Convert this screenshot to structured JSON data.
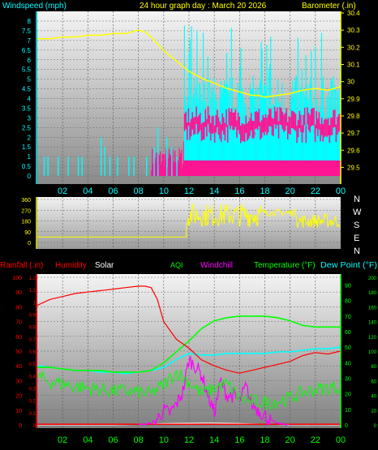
{
  "header": {
    "left": "Windspeed (mph)",
    "center": "24 hour graph day : March 20 2026",
    "right": "Barometer (.in)"
  },
  "x_ticks": [
    "02",
    "04",
    "06",
    "08",
    "10",
    "12",
    "14",
    "16",
    "18",
    "20",
    "22",
    "00"
  ],
  "compass": [
    "N",
    "W",
    "S",
    "E",
    "N"
  ],
  "bottom_header": {
    "rain": "Rainfall (.in)",
    "humidity": "Humidity",
    "solar": "Solar",
    "aqi": "AQI",
    "windchill": "Windchill",
    "temperature": "Temperature (°F)",
    "dewpoint": "Dew Point (°F)"
  },
  "colors": {
    "background": "#000000",
    "wind": "#00ffff",
    "gust": "#ff1493",
    "barometer": "#ffff00",
    "direction": "#ffff00",
    "rain": "#ff0000",
    "humidity": "#ff0000",
    "solar": "#ffffff",
    "aqi": "#00ff00",
    "windchill": "#ff00ff",
    "temperature": "#00ff00",
    "dewpoint": "#00ffff"
  },
  "chart_data": [
    {
      "type": "line",
      "x_ticks_hours": [
        2,
        4,
        6,
        8,
        10,
        12,
        14,
        16,
        18,
        20,
        22,
        24
      ],
      "left_axis": {
        "ticks": [
          "0",
          "0.5",
          "1",
          "1.5",
          "2",
          "2.5",
          "3",
          "3.5",
          "4",
          "4.5",
          "5",
          "5.5",
          "6",
          "6.5",
          "7",
          "7.5",
          "8"
        ],
        "ylim": [
          0,
          8
        ]
      },
      "right_axis": {
        "ticks": [
          "29.5",
          "29.6",
          "29.7",
          "29.8",
          "29.9",
          "30",
          "30.1",
          "30.2",
          "30.3",
          "30.4"
        ],
        "ylim": [
          29.45,
          30.4
        ]
      },
      "series": [
        {
          "name": "Barometer",
          "axis": "right",
          "x": [
            0,
            1,
            2,
            3,
            4,
            5,
            6,
            7,
            8,
            8.5,
            9,
            10,
            11,
            12,
            13,
            14,
            15,
            16,
            17,
            17.5,
            18,
            19,
            20,
            21,
            22,
            23,
            24
          ],
          "y": [
            30.25,
            30.25,
            30.26,
            30.26,
            30.27,
            30.27,
            30.28,
            30.28,
            30.3,
            30.29,
            30.26,
            30.18,
            30.12,
            30.06,
            30.02,
            29.99,
            29.96,
            29.94,
            29.92,
            29.92,
            29.91,
            29.92,
            29.93,
            29.95,
            29.96,
            29.95,
            29.97
          ]
        }
      ]
    },
    {
      "type": "line",
      "x_ticks_hours": [
        2,
        4,
        6,
        8,
        10,
        12,
        14,
        16,
        18,
        20,
        22,
        24
      ],
      "left_axis": {
        "ticks": [
          "0",
          "90",
          "180",
          "270",
          "360"
        ],
        "ylim": [
          0,
          360
        ]
      },
      "series": [
        {
          "name": "Direction",
          "x": [
            0,
            11.8,
            11.8,
            24
          ],
          "y": [
            45,
            45,
            270,
            230
          ]
        }
      ]
    },
    {
      "type": "line",
      "x_ticks_hours": [
        2,
        4,
        6,
        8,
        10,
        12,
        14,
        16,
        18,
        20,
        22,
        24
      ],
      "left_axis": {
        "ticks": [
          "0",
          "10",
          "20",
          "30",
          "40",
          "50",
          "60",
          "70",
          "80",
          "90",
          "100"
        ],
        "ylim": [
          0,
          100
        ]
      },
      "rain_axis": {
        "ticks": [
          "0",
          "0.1",
          "0.2",
          "0.3",
          "0.4",
          "0.5",
          "0.6",
          "0.7",
          "0.8",
          "0.9",
          "1",
          "1.1",
          "1.2"
        ],
        "ylim": [
          0,
          1.2
        ]
      },
      "right_axis": {
        "ticks": [
          "0",
          "10",
          "20",
          "30",
          "40",
          "50",
          "60",
          "70",
          "80",
          "90"
        ],
        "ylim": [
          0,
          95
        ]
      },
      "far_right_axis": {
        "ticks": [
          "0",
          "20",
          "40",
          "60",
          "80",
          "100",
          "120",
          "140",
          "160",
          "180",
          "200"
        ],
        "ylim": [
          0,
          200
        ]
      },
      "series": [
        {
          "name": "Humidity",
          "x": [
            0,
            1,
            2,
            3,
            4,
            5,
            6,
            7,
            8,
            8.5,
            9,
            9.5,
            10,
            11,
            12,
            13,
            14,
            15,
            16,
            17,
            18,
            19,
            20,
            21,
            22,
            23,
            24
          ],
          "y": [
            81,
            85,
            87,
            89,
            90,
            91,
            92,
            93,
            94,
            94,
            93,
            85,
            70,
            58,
            52,
            44,
            40,
            37,
            35,
            37,
            39,
            41,
            43,
            47,
            49,
            48,
            50
          ]
        },
        {
          "name": "Temperature",
          "x": [
            0,
            1,
            2,
            3,
            4,
            5,
            6,
            7,
            8,
            9,
            10,
            11,
            12,
            13,
            14,
            15,
            16,
            17,
            18,
            19,
            20,
            21,
            22,
            23,
            24
          ],
          "y": [
            37,
            37,
            36,
            35,
            35,
            35,
            34,
            34,
            34,
            35,
            40,
            47,
            54,
            62,
            67,
            69,
            70,
            70,
            70,
            69,
            67,
            64,
            63,
            63,
            63
          ]
        },
        {
          "name": "Dew Point",
          "x": [
            0,
            1,
            2,
            3,
            4,
            5,
            6,
            7,
            8,
            9,
            10,
            11,
            12,
            13,
            14,
            15,
            16,
            17,
            18,
            19,
            20,
            21,
            22,
            23,
            24
          ],
          "y": [
            38,
            37,
            36,
            35,
            35,
            34,
            34,
            33,
            34,
            35,
            37,
            42,
            46,
            45,
            45,
            46,
            46,
            46,
            46,
            47,
            47,
            48,
            49,
            49,
            50
          ]
        },
        {
          "name": "AQI",
          "x": [
            0,
            1,
            2,
            3,
            4,
            5,
            6,
            7,
            8,
            9,
            10,
            11,
            12,
            13,
            14,
            15,
            16,
            17,
            18,
            19,
            20,
            21,
            22,
            23,
            24
          ],
          "y": [
            33,
            29,
            28,
            26,
            25,
            24,
            23,
            23,
            22,
            21,
            27,
            36,
            29,
            21,
            25,
            28,
            18,
            16,
            15,
            16,
            18,
            22,
            24,
            25,
            26
          ]
        },
        {
          "name": "Windchill",
          "x": [
            8,
            9,
            9.5,
            10,
            10.5,
            11,
            11.5,
            12,
            12.5,
            13,
            13.5,
            14,
            14.5,
            15,
            15.5,
            16,
            16.5,
            17,
            17.5,
            18,
            18.5,
            19,
            20,
            21,
            22,
            23,
            24
          ],
          "y": [
            0,
            1,
            4,
            10,
            8,
            14,
            22,
            44,
            40,
            34,
            20,
            8,
            30,
            20,
            20,
            16,
            26,
            14,
            10,
            6,
            3,
            1,
            0,
            0,
            0,
            0,
            0
          ]
        },
        {
          "name": "Solar",
          "x": [
            0,
            6,
            6.5,
            7,
            8,
            9,
            10,
            11,
            12,
            13,
            14,
            15,
            16,
            17,
            18,
            19,
            19.5,
            20,
            24
          ],
          "y": [
            0,
            0,
            1,
            3,
            8,
            15,
            22,
            26,
            28,
            30,
            30,
            28,
            24,
            18,
            12,
            6,
            3,
            1,
            0
          ]
        }
      ]
    }
  ]
}
